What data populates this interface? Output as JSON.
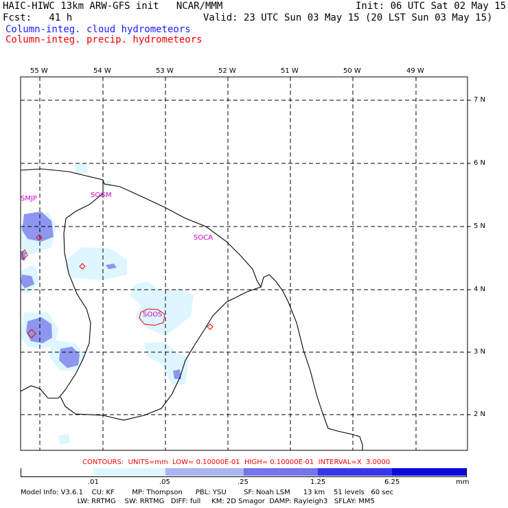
{
  "header": {
    "model_line": "HAIC-HIWC 13km ARW-GFS init   NCAR/MMM",
    "init": "Init: 06 UTC Sat 02 May 15",
    "fcst": "Fcst:   41 h",
    "valid": "Valid: 23 UTC Sun 03 May 15 (20 LST Sun 03 May 15)",
    "field_cloud": "Column-integ. cloud hydrometeors",
    "field_precip": "Column-integ. precip. hydrometeors"
  },
  "colors": {
    "cloud_label": "#1a1aff",
    "precip_label": "#ee0000",
    "station": "#cc00cc",
    "precip_contour": "#ee0000"
  },
  "map": {
    "lon_labels": [
      "55 W",
      "54 W",
      "53 W",
      "52 W",
      "51 W",
      "50 W",
      "49 W"
    ],
    "lat_labels": [
      "7 N",
      "6 N",
      "5 N",
      "4 N",
      "3 N",
      "2 N"
    ],
    "stations": [
      "SMJP",
      "SOGM",
      "SOCA",
      "SOOS"
    ]
  },
  "contours_line": "CONTOURS:  UNITS=mm  LOW= 0.10000E-01  HIGH= 0.10000E-01  INTERVAL=X  3.0000",
  "colorbar": {
    "labels": [
      ".01",
      ".05",
      ".25",
      "1.25",
      "6.25",
      "mm"
    ],
    "colors": [
      "#ffffff",
      "#ddf6ff",
      "#a9b5f5",
      "#7575ee",
      "#3636ec",
      "#0b0bdb"
    ]
  },
  "model_info": {
    "line1": "Model Info: V3.6.1    CU: KF        MP: Thompson      PBL: YSU        SF: Noah LSM      13 km    51 levels   60 sec",
    "line2": "                          LW: RRTMG    SW: RRTMG   DIFF: full     KM: 2D Smagor  DAMP: Rayleigh3   SFLAY: MM5"
  }
}
